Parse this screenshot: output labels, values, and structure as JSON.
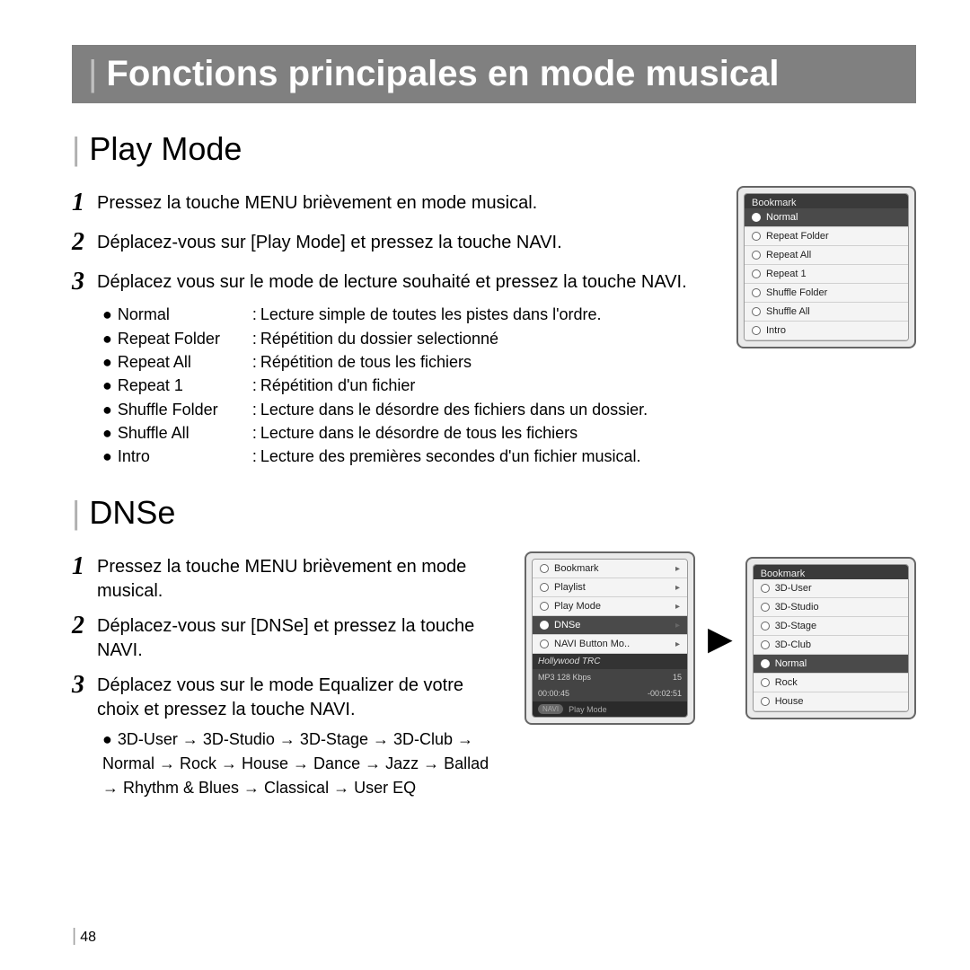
{
  "header": {
    "title": "Fonctions principales en mode musical"
  },
  "page_number": "48",
  "play_mode": {
    "title": "Play Mode",
    "steps": [
      "Pressez la touche MENU brièvement en mode musical.",
      "Déplacez-vous sur [Play Mode] et pressez la touche NAVI.",
      "Déplacez vous sur le mode de lecture souhaité et pressez la touche NAVI."
    ],
    "options": [
      {
        "label": "Normal",
        "desc": "Lecture simple de toutes les pistes dans l'ordre."
      },
      {
        "label": "Repeat Folder",
        "desc": "Répétition du dossier selectionné"
      },
      {
        "label": "Repeat All",
        "desc": "Répétition de tous les fichiers"
      },
      {
        "label": "Repeat 1",
        "desc": "Répétition d'un fichier"
      },
      {
        "label": "Shuffle Folder",
        "desc": "Lecture dans le désordre des fichiers dans un dossier."
      },
      {
        "label": "Shuffle All",
        "desc": "Lecture dans le désordre de tous les fichiers"
      },
      {
        "label": "Intro",
        "desc": "Lecture des premières secondes d'un fichier musical."
      }
    ],
    "screenshot": {
      "header_peek": "Bookmark",
      "items": [
        "Normal",
        "Repeat Folder",
        "Repeat All",
        "Repeat 1",
        "Shuffle Folder",
        "Shuffle All",
        "Intro"
      ],
      "selected_index": 0
    }
  },
  "dnse": {
    "title": "DNSe",
    "steps": [
      "Pressez la touche MENU brièvement en mode musical.",
      "Déplacez-vous sur [DNSe] et pressez la touche NAVI.",
      "Déplacez vous sur le mode Equalizer de votre choix et pressez la touche NAVI."
    ],
    "flow": "3D-User → 3D-Studio → 3D-Stage → 3D-Club → Normal → Rock → House → Dance → Jazz → Ballad → Rhythm & Blues → Classical → User EQ",
    "screenshot_left": {
      "items": [
        "Bookmark",
        "Playlist",
        "Play Mode",
        "DNSe",
        "NAVI Button Mo.."
      ],
      "selected_index": 3,
      "player": {
        "title": "Hollywood TRC",
        "info_left": "MP3   128 Kbps",
        "info_right": "15",
        "time_left": "00:00:45",
        "time_right": "-00:02:51",
        "foot_label": "Play Mode",
        "badge": "NAVI"
      }
    },
    "screenshot_right": {
      "header_peek": "Bookmark",
      "items": [
        "3D-User",
        "3D-Studio",
        "3D-Stage",
        "3D-Club",
        "Normal",
        "Rock",
        "House"
      ],
      "selected_index": 4
    }
  },
  "colors": {
    "header_bg": "#808080",
    "header_fg": "#ffffff",
    "selected_bg": "#4a4a4a",
    "device_border": "#666666"
  }
}
